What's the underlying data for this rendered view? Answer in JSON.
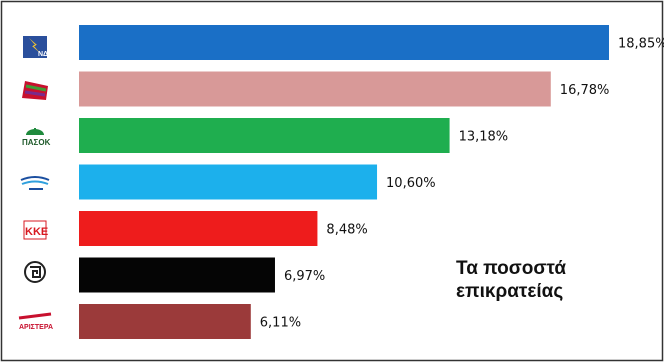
{
  "chart_data": {
    "type": "bar",
    "orientation": "horizontal",
    "categories": [
      "ND",
      "SYRIZA",
      "PASOK",
      "ANEL",
      "KKE",
      "Chrysi Avgi",
      "Dimokratiki Aristera"
    ],
    "values": [
      18.85,
      16.78,
      13.18,
      10.6,
      8.48,
      6.97,
      6.11
    ],
    "value_labels": [
      "18,85%",
      "16,78%",
      "13,18%",
      "10,60%",
      "8,48%",
      "6,97%",
      "6,11%"
    ],
    "colors": [
      "#1a6fc6",
      "#d89998",
      "#1fae4f",
      "#1cb0ec",
      "#ee1c1c",
      "#050505",
      "#9b3a3a"
    ],
    "logos": [
      "nd-logo",
      "syriza-logo",
      "pasok-logo",
      "anel-logo",
      "kke-logo",
      "golden-dawn-logo",
      "dimar-logo"
    ],
    "xlim": [
      0,
      20
    ],
    "grid": false,
    "legend": "none"
  },
  "note": {
    "line1": "Τα ποσοστά",
    "line2": "επικρατείας"
  }
}
